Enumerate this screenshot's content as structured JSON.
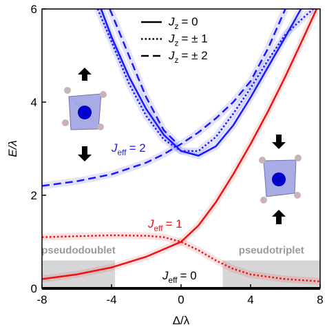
{
  "chart_data": {
    "type": "line",
    "xlabel": "Δ/λ",
    "ylabel": "E/λ",
    "xlim": [
      -8,
      8
    ],
    "xticks": [
      -8,
      -4,
      0,
      4,
      8
    ],
    "ylim": [
      0,
      6
    ],
    "yticks": [
      0,
      2,
      4,
      6
    ],
    "legend": [
      {
        "symbol": "J",
        "sub": "z",
        "text": "= 0",
        "style": "solid"
      },
      {
        "symbol": "J",
        "sub": "z",
        "text": "= ± 1",
        "style": "dotted"
      },
      {
        "symbol": "J",
        "sub": "z",
        "text": "= ± 2",
        "style": "dashed"
      }
    ],
    "annotations": [
      {
        "symbol": "J",
        "sub": "eff",
        "text": "= 2",
        "color": "#1a1aff"
      },
      {
        "symbol": "J",
        "sub": "eff",
        "text": "= 1",
        "color": "#ee1111"
      },
      {
        "symbol": "J",
        "sub": "eff",
        "text": "= 0",
        "color": "#000000"
      }
    ],
    "regions": [
      {
        "label": "pseudodoublet",
        "xlim": [
          -8,
          -3.8
        ]
      },
      {
        "label": "pseudotriplet",
        "xlim": [
          2.4,
          8
        ]
      }
    ],
    "series": [
      {
        "color": "#000000",
        "style": "solid",
        "x": [
          -8,
          8
        ],
        "values": [
          0,
          0
        ]
      },
      {
        "color": "#ee1111",
        "style": "solid",
        "x": [
          -8,
          -6,
          -4,
          -2,
          0,
          1,
          2,
          3,
          4,
          5,
          6,
          7,
          7.8
        ],
        "values": [
          0.2,
          0.3,
          0.45,
          0.68,
          1.0,
          1.35,
          1.85,
          2.45,
          3.1,
          3.8,
          4.55,
          5.35,
          6
        ]
      },
      {
        "color": "#ee1111",
        "style": "dotted",
        "x": [
          -8,
          -6,
          -4,
          -2,
          -1,
          0,
          1,
          2,
          3,
          4,
          6,
          8
        ],
        "values": [
          1.1,
          1.12,
          1.14,
          1.13,
          1.1,
          1.0,
          0.82,
          0.6,
          0.42,
          0.3,
          0.2,
          0.15
        ]
      },
      {
        "color": "#1a1aff",
        "style": "solid",
        "x": [
          -4.6,
          -4,
          -3,
          -2,
          -1,
          0,
          1,
          2,
          3,
          4,
          5,
          6,
          6.9
        ],
        "values": [
          6,
          5.4,
          4.55,
          3.85,
          3.3,
          2.95,
          2.85,
          3.05,
          3.5,
          4.1,
          4.75,
          5.4,
          6
        ]
      },
      {
        "color": "#1a1aff",
        "style": "dotted",
        "x": [
          -4.8,
          -4,
          -3,
          -2,
          -1,
          0,
          1,
          2,
          3,
          4,
          5,
          6,
          7,
          7.6
        ],
        "values": [
          6,
          5.3,
          4.4,
          3.7,
          3.2,
          2.95,
          2.95,
          3.25,
          3.75,
          4.3,
          4.9,
          5.45,
          5.8,
          6
        ]
      },
      {
        "color": "#1a1aff",
        "style": "dashed",
        "x": [
          -4.1,
          -3,
          -2,
          -1,
          -0.2
        ],
        "values": [
          6,
          5.0,
          4.1,
          3.4,
          3.1
        ]
      },
      {
        "color": "#1a1aff",
        "style": "dashed",
        "x": [
          -8,
          -6,
          -4,
          -2,
          -1,
          0,
          1,
          2,
          3,
          4,
          5,
          6
        ],
        "values": [
          2.2,
          2.3,
          2.45,
          2.7,
          2.88,
          3.1,
          3.35,
          3.65,
          4.0,
          4.45,
          5.15,
          6
        ]
      }
    ]
  }
}
